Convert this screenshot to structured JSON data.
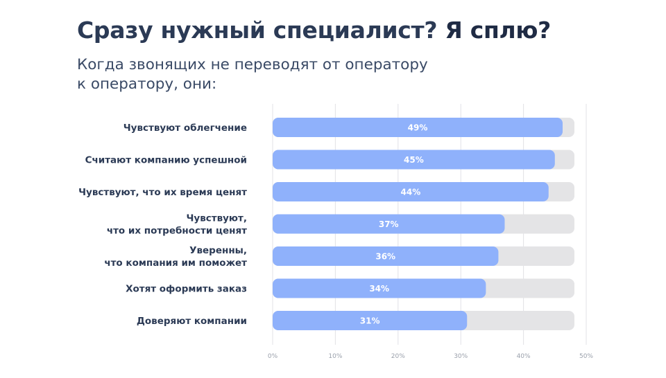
{
  "header": {
    "title_main": "Сразу нужный специалист?",
    "title_emphasis": "Я сплю?",
    "subtitle_line1": "Когда звонящих не переводят от оператору",
    "subtitle_line2": "к оператору, они:"
  },
  "colors": {
    "bar": "#8fb1fb",
    "track": "#e4e4e6",
    "grid": "#e2e2e6",
    "label": "#2b3a55",
    "value_label": "#ffffff",
    "tick": "#9aa0ab"
  },
  "chart_data": {
    "type": "bar",
    "orientation": "horizontal",
    "categories": [
      [
        "Чувствуют облегчение"
      ],
      [
        "Считают компанию успешной"
      ],
      [
        "Чувствуют, что их время ценят"
      ],
      [
        "Чувствуют,",
        "что их потребности ценят"
      ],
      [
        "Уверенны,",
        "что компания им поможет"
      ],
      [
        "Хотят оформить заказ"
      ],
      [
        "Доверяют компании"
      ]
    ],
    "values": [
      49,
      45,
      44,
      37,
      36,
      34,
      31
    ],
    "value_labels": [
      "49%",
      "45%",
      "44%",
      "37%",
      "36%",
      "34%",
      "31%"
    ],
    "x_ticks": [
      "0%",
      "10%",
      "20%",
      "30%",
      "40%",
      "50%"
    ],
    "xlim": [
      0,
      50
    ],
    "grid": true
  }
}
